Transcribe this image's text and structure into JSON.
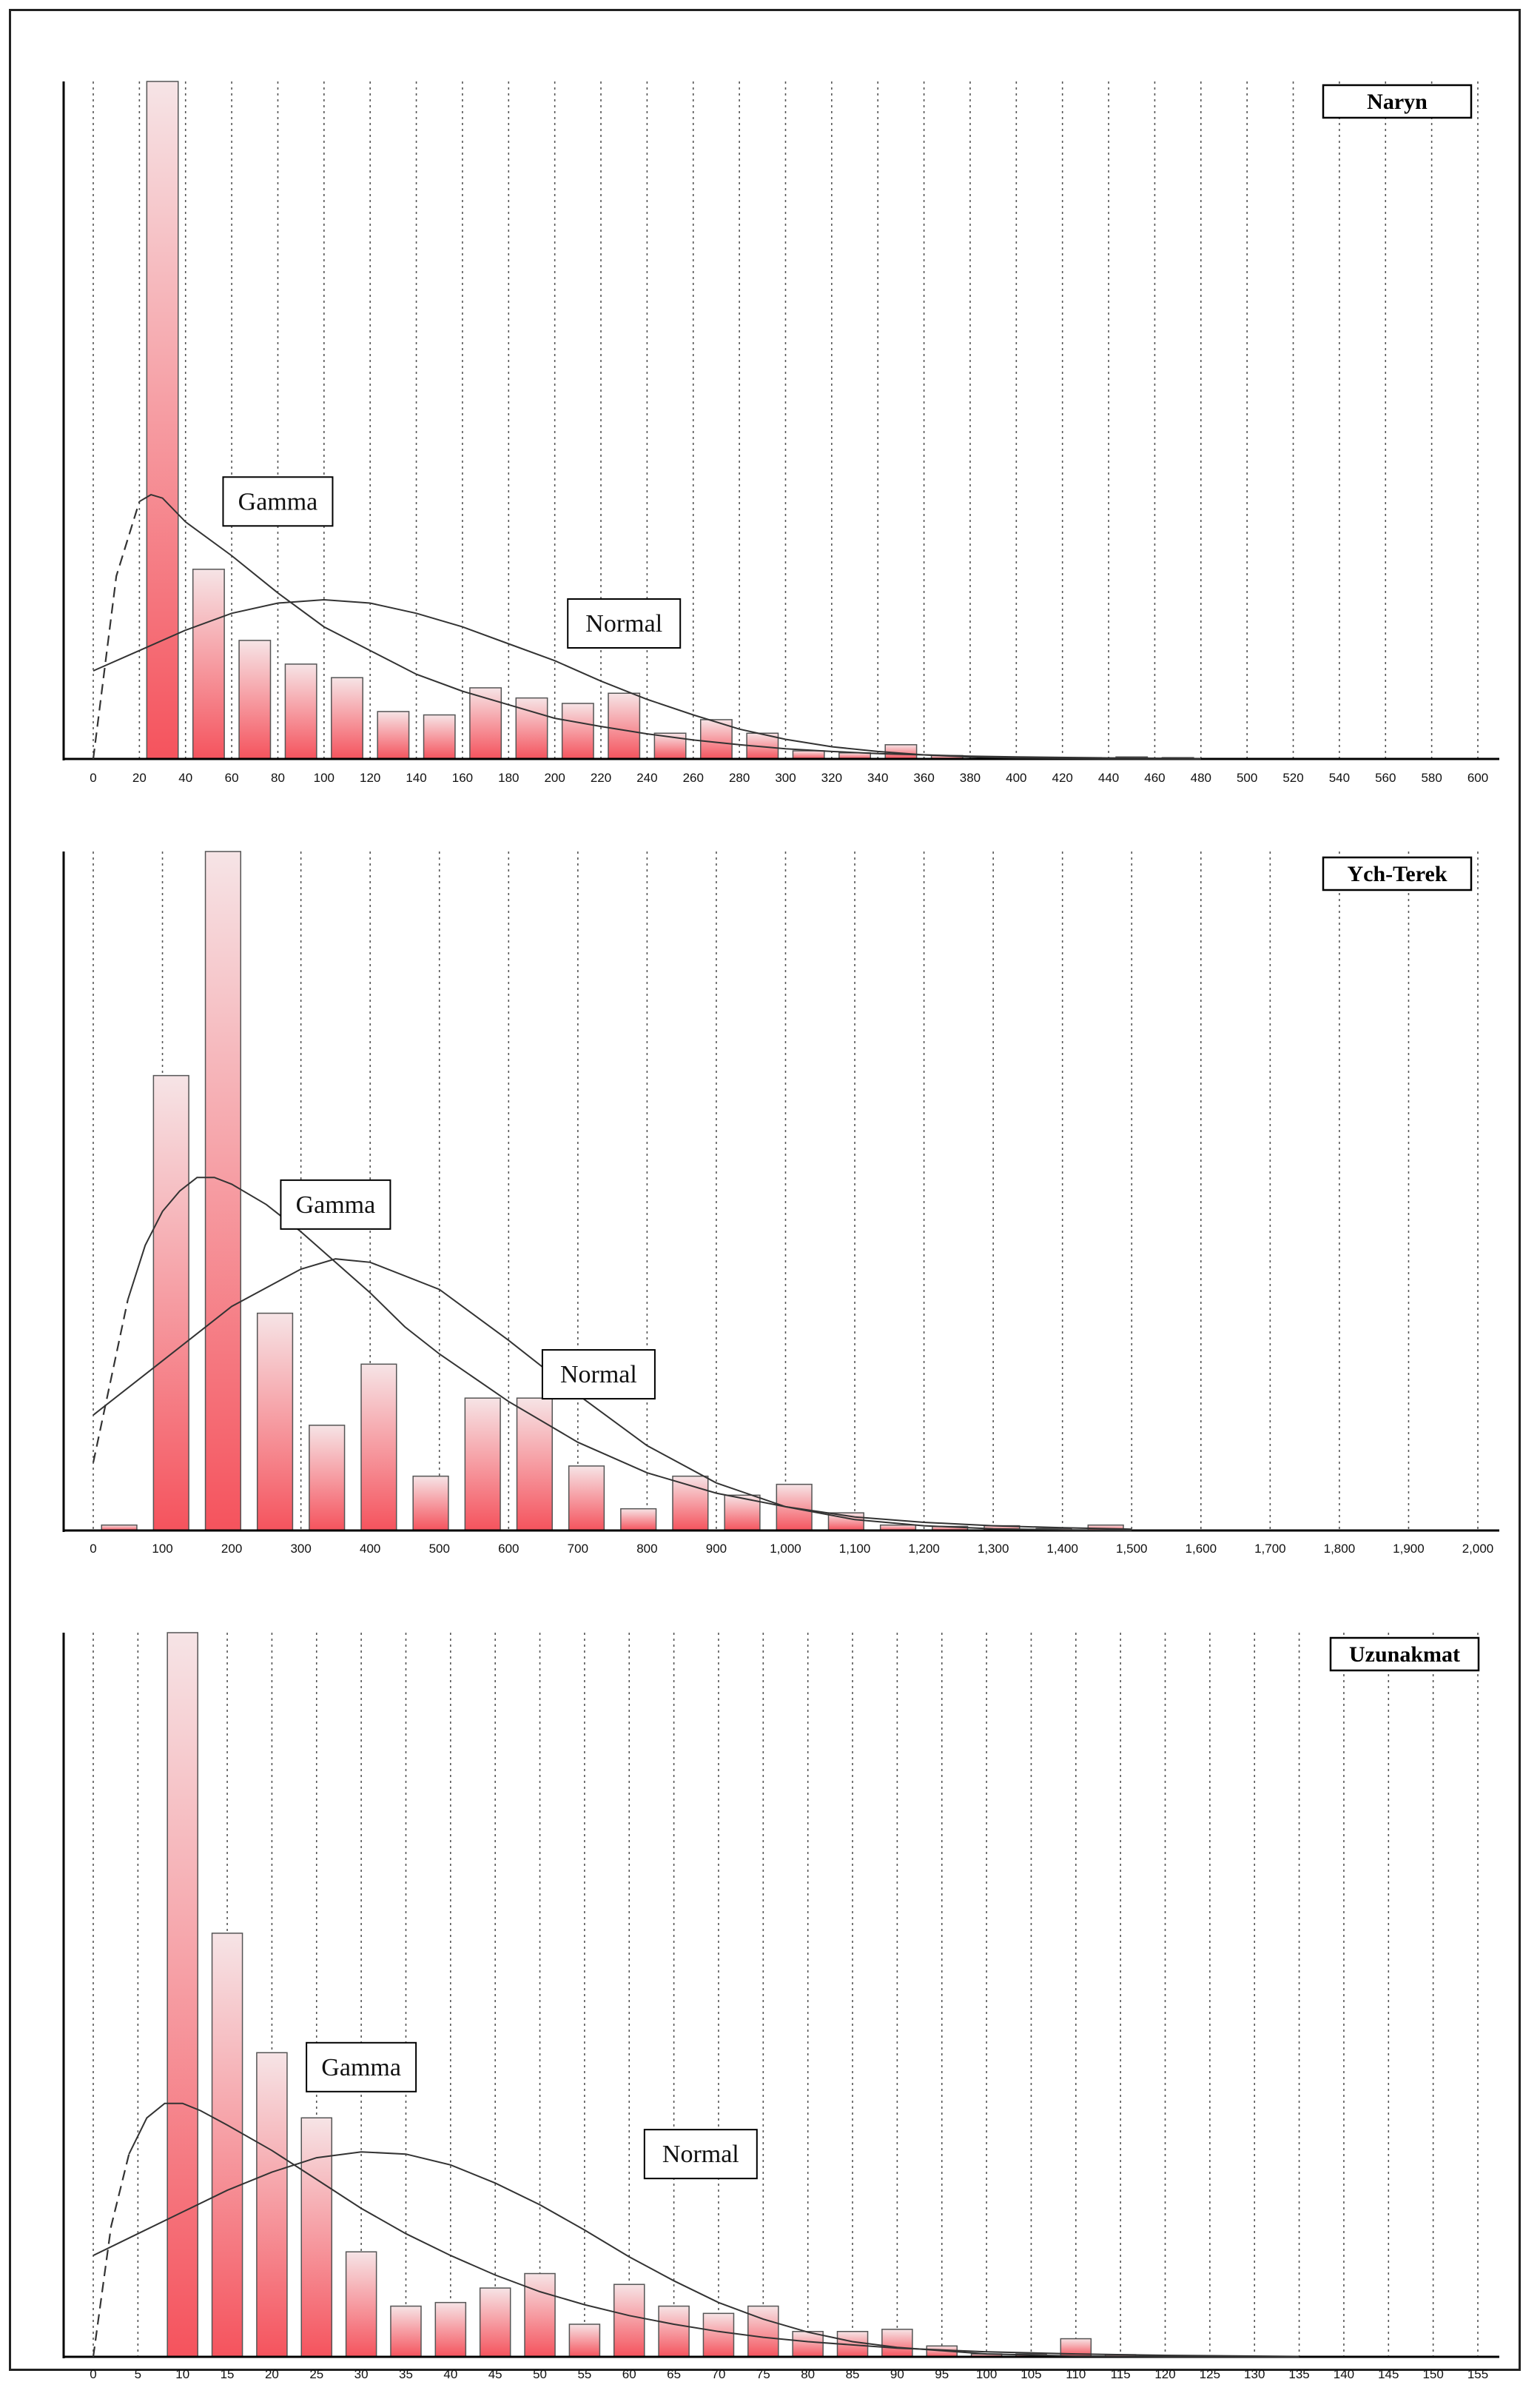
{
  "chart_data": [
    {
      "type": "bar",
      "title": "Naryn",
      "x_ticks": [
        "0",
        "20",
        "40",
        "60",
        "80",
        "100",
        "120",
        "140",
        "160",
        "180",
        "200",
        "220",
        "240",
        "260",
        "280",
        "300",
        "320",
        "340",
        "360",
        "380",
        "400",
        "420",
        "440",
        "460",
        "480",
        "500",
        "520",
        "540",
        "560",
        "580",
        "600"
      ],
      "xlim": [
        0,
        600
      ],
      "bin_width": 20,
      "bin_centers": [
        30,
        50,
        70,
        90,
        110,
        130,
        150,
        170,
        190,
        210,
        230,
        250,
        270,
        290,
        310,
        330,
        350,
        370,
        390,
        410,
        430,
        450,
        470
      ],
      "values": [
        100,
        28,
        17.5,
        14,
        12,
        7,
        6.5,
        10.5,
        9,
        8.2,
        9.7,
        3.8,
        5.8,
        3.8,
        1.2,
        0.9,
        2.1,
        0.5,
        0.3,
        0.2,
        0.2,
        0.3,
        0.2
      ],
      "ylim": [
        0,
        100
      ],
      "curve_labels": [
        "Gamma",
        "Normal"
      ],
      "gamma_curve": {
        "x": [
          0,
          10,
          20,
          25,
          30,
          40,
          60,
          80,
          100,
          120,
          140,
          160,
          180,
          200,
          220,
          240,
          260,
          280,
          300,
          320,
          340,
          360,
          380,
          400,
          440,
          480
        ],
        "y": [
          0,
          27,
          38,
          39,
          38.5,
          35,
          30,
          24.5,
          19.5,
          16,
          12.5,
          10,
          8,
          6,
          4.8,
          3.7,
          2.8,
          2.1,
          1.5,
          1.1,
          0.8,
          0.6,
          0.4,
          0.3,
          0.15,
          0.05
        ]
      },
      "normal_curve": {
        "x": [
          0,
          20,
          40,
          60,
          80,
          100,
          120,
          140,
          160,
          180,
          200,
          220,
          240,
          260,
          280,
          300,
          320,
          340,
          360,
          380,
          400,
          440,
          480
        ],
        "y": [
          13,
          16,
          19,
          21.5,
          23,
          23.5,
          23,
          21.5,
          19.5,
          17,
          14.5,
          11.5,
          8.8,
          6.5,
          4.4,
          2.9,
          1.8,
          1.1,
          0.6,
          0.3,
          0.15,
          0.04,
          0.01
        ]
      },
      "label_anchors": {
        "Gamma": {
          "x": 80,
          "y": 38
        },
        "Normal": {
          "x": 230,
          "y": 20
        }
      }
    },
    {
      "type": "bar",
      "title": "Ych-Terek",
      "x_ticks": [
        "0",
        "100",
        "200",
        "300",
        "400",
        "500",
        "600",
        "700",
        "800",
        "900",
        "1,000",
        "1,100",
        "1,200",
        "1,300",
        "1,400",
        "1,500",
        "1,600",
        "1,700",
        "1,800",
        "1,900",
        "2,000"
      ],
      "xlim": [
        0,
        2000
      ],
      "bin_width": 75,
      "bin_centers": [
        37.5,
        112.5,
        187.5,
        262.5,
        337.5,
        412.5,
        487.5,
        562.5,
        637.5,
        712.5,
        787.5,
        862.5,
        937.5,
        1012.5,
        1087.5,
        1162.5,
        1237.5,
        1312.5,
        1387.5,
        1462.5
      ],
      "values": [
        0.8,
        67,
        100,
        32,
        15.5,
        24.5,
        8,
        19.5,
        19.5,
        9.5,
        3.2,
        8,
        5.2,
        6.8,
        2.6,
        0.8,
        0.6,
        0.7,
        0.3,
        0.8
      ],
      "ylim": [
        0,
        100
      ],
      "curve_labels": [
        "Gamma",
        "Normal"
      ],
      "gamma_curve": {
        "x": [
          0,
          25,
          50,
          75,
          100,
          125,
          150,
          175,
          200,
          250,
          300,
          350,
          400,
          450,
          500,
          600,
          700,
          800,
          900,
          1000,
          1100,
          1200,
          1300,
          1400,
          1500
        ],
        "y": [
          10,
          22,
          34,
          42,
          47,
          50,
          52,
          52,
          51,
          48,
          44,
          39.5,
          35,
          30,
          26,
          19,
          13,
          8.5,
          5.5,
          3.5,
          2,
          1.2,
          0.7,
          0.4,
          0.2
        ]
      },
      "normal_curve": {
        "x": [
          0,
          100,
          200,
          300,
          350,
          400,
          500,
          600,
          700,
          800,
          900,
          1000,
          1100,
          1200,
          1300,
          1400,
          1500
        ],
        "y": [
          17,
          25,
          33,
          38.5,
          40,
          39.5,
          35.5,
          28,
          20,
          12.5,
          7,
          3.5,
          1.6,
          0.7,
          0.25,
          0.1,
          0.03
        ]
      },
      "label_anchors": {
        "Gamma": {
          "x": 350,
          "y": 48
        },
        "Normal": {
          "x": 730,
          "y": 23
        }
      }
    },
    {
      "type": "bar",
      "title": "Uzunakmat",
      "x_ticks": [
        "0",
        "5",
        "10",
        "15",
        "20",
        "25",
        "30",
        "35",
        "40",
        "45",
        "50",
        "55",
        "60",
        "65",
        "70",
        "75",
        "80",
        "85",
        "90",
        "95",
        "100",
        "105",
        "110",
        "115",
        "120",
        "125",
        "130",
        "135",
        "140",
        "145",
        "150",
        "155"
      ],
      "xlim": [
        0,
        155
      ],
      "bin_width": 5,
      "bin_centers": [
        10,
        15,
        20,
        25,
        30,
        35,
        40,
        45,
        50,
        55,
        60,
        65,
        70,
        75,
        80,
        85,
        90,
        95,
        100,
        105,
        110,
        115
      ],
      "values": [
        100,
        58.5,
        42,
        33,
        14.5,
        7,
        7.5,
        9.5,
        11.5,
        4.5,
        10,
        7,
        6,
        7,
        3.5,
        3.5,
        3.8,
        1.5,
        0.4,
        0.4,
        2.5,
        0.3
      ],
      "ylim": [
        0,
        100
      ],
      "curve_labels": [
        "Gamma",
        "Normal"
      ],
      "gamma_curve": {
        "x": [
          0,
          2,
          4,
          6,
          8,
          10,
          12,
          15,
          20,
          25,
          30,
          35,
          40,
          45,
          50,
          55,
          60,
          65,
          70,
          75,
          80,
          90,
          100,
          110,
          120,
          135
        ],
        "y": [
          0,
          18,
          28,
          33,
          35,
          35,
          34,
          32,
          28.5,
          24.5,
          20.5,
          17,
          14,
          11.3,
          9,
          7.2,
          5.7,
          4.5,
          3.5,
          2.7,
          2.1,
          1.2,
          0.7,
          0.4,
          0.2,
          0.05
        ]
      },
      "normal_curve": {
        "x": [
          0,
          5,
          10,
          15,
          20,
          25,
          30,
          35,
          40,
          45,
          50,
          55,
          60,
          65,
          70,
          75,
          80,
          85,
          90,
          100,
          110,
          120,
          135
        ],
        "y": [
          14,
          17,
          20,
          23,
          25.5,
          27.5,
          28.3,
          28,
          26.5,
          24,
          21,
          17.5,
          13.8,
          10.5,
          7.5,
          5.2,
          3.4,
          2.1,
          1.3,
          0.4,
          0.1,
          0.03,
          0.01
        ]
      },
      "label_anchors": {
        "Gamma": {
          "x": 30,
          "y": 40
        },
        "Normal": {
          "x": 68,
          "y": 28
        }
      }
    }
  ],
  "colors": {
    "bar_top": "#f6e4e6",
    "bar_bottom": "#f5535d",
    "curve": "#333333",
    "gamma_dash": "#333333"
  }
}
